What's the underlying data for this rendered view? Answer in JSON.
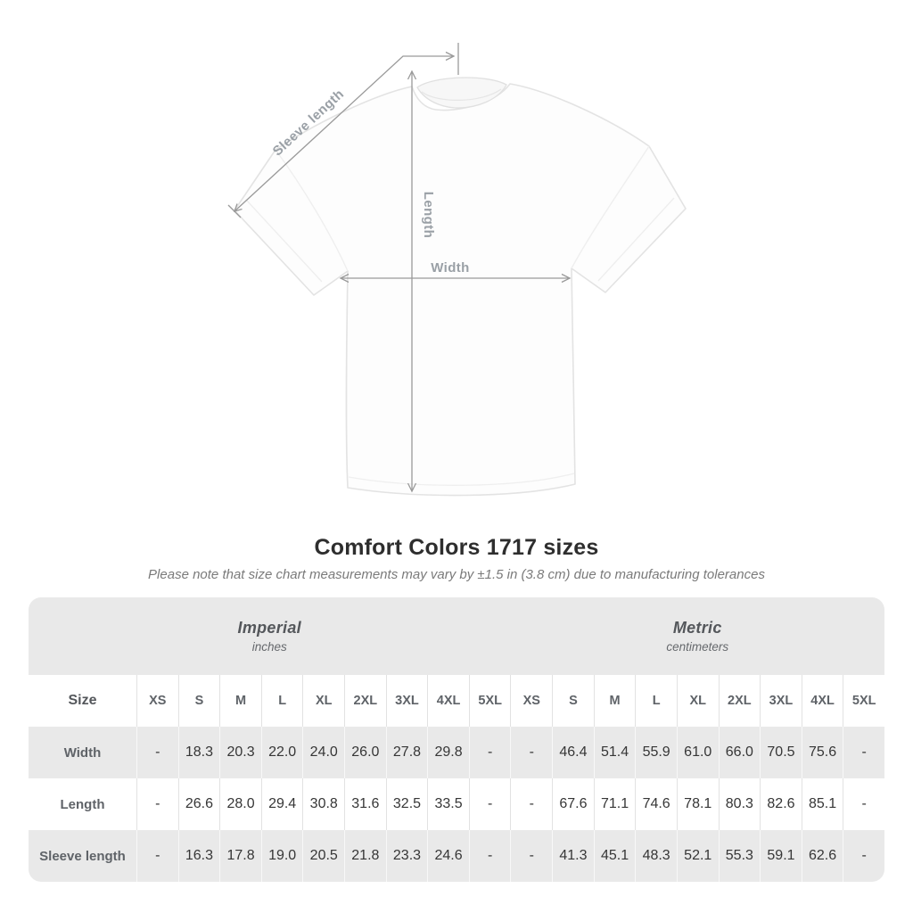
{
  "shirt_diagram": {
    "labels": {
      "sleeve_length": "Sleeve length",
      "length": "Length",
      "width": "Width"
    },
    "line_color": "#9a9a9a",
    "label_color": "#9aa0a6"
  },
  "title": "Comfort Colors 1717 sizes",
  "subtitle": "Please note that size chart measurements may vary by ±1.5 in (3.8 cm) due to manufacturing tolerances",
  "table": {
    "unit_groups": [
      {
        "label": "Imperial",
        "sublabel": "inches"
      },
      {
        "label": "Metric",
        "sublabel": "centimeters"
      }
    ],
    "size_header": "Size",
    "sizes": [
      "XS",
      "S",
      "M",
      "L",
      "XL",
      "2XL",
      "3XL",
      "4XL",
      "5XL"
    ],
    "rows": [
      {
        "label": "Width",
        "imperial": [
          "-",
          "18.3",
          "20.3",
          "22.0",
          "24.0",
          "26.0",
          "27.8",
          "29.8",
          "-"
        ],
        "metric": [
          "-",
          "46.4",
          "51.4",
          "55.9",
          "61.0",
          "66.0",
          "70.5",
          "75.6",
          "-"
        ]
      },
      {
        "label": "Length",
        "imperial": [
          "-",
          "26.6",
          "28.0",
          "29.4",
          "30.8",
          "31.6",
          "32.5",
          "33.5",
          "-"
        ],
        "metric": [
          "-",
          "67.6",
          "71.1",
          "74.6",
          "78.1",
          "80.3",
          "82.6",
          "85.1",
          "-"
        ]
      },
      {
        "label": "Sleeve length",
        "imperial": [
          "-",
          "16.3",
          "17.8",
          "19.0",
          "20.5",
          "21.8",
          "23.3",
          "24.6",
          "-"
        ],
        "metric": [
          "-",
          "41.3",
          "45.1",
          "48.3",
          "52.1",
          "55.3",
          "59.1",
          "62.6",
          "-"
        ]
      }
    ]
  }
}
